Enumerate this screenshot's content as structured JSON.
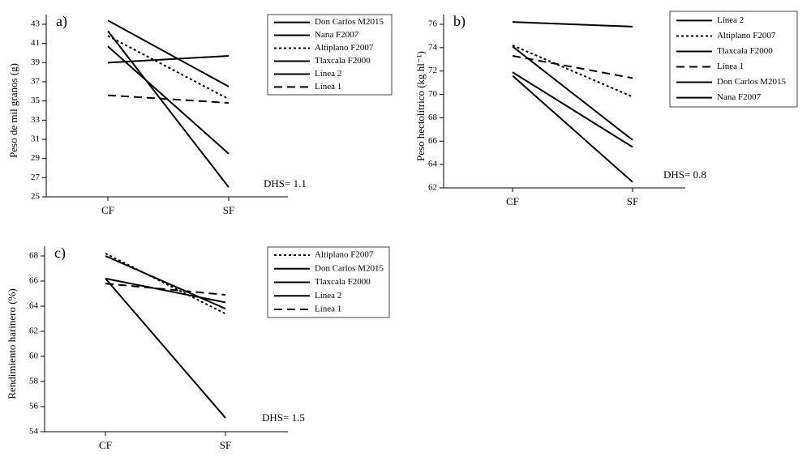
{
  "chart_data": [
    {
      "type": "line",
      "title": "a)",
      "y_label": "Peso de mil granos (g)",
      "annotation": "DHS= 1.1",
      "categories": [
        "CF",
        "SF"
      ],
      "ylim": [
        25,
        43
      ],
      "yticks": [
        25,
        27,
        29,
        31,
        33,
        35,
        37,
        39,
        41,
        43
      ],
      "grid": false,
      "series": [
        {
          "name": "Don Carlos M2015",
          "color": "#000000",
          "style": "solid",
          "values": [
            43.4,
            36.5
          ]
        },
        {
          "name": "Nana F2007",
          "color": "#000000",
          "style": "solid",
          "values": [
            39.0,
            39.7
          ]
        },
        {
          "name": "Altiplano F2007",
          "color": "#000000",
          "style": "dotted",
          "values": [
            41.8,
            35.2
          ]
        },
        {
          "name": "Tlaxcala F2000",
          "color": "#000000",
          "style": "solid",
          "values": [
            40.7,
            29.5
          ]
        },
        {
          "name": "Línea 2",
          "color": "#000000",
          "style": "solid",
          "values": [
            42.3,
            26.0
          ]
        },
        {
          "name": "Línea 1",
          "color": "#000000",
          "style": "dashed",
          "values": [
            35.6,
            34.8
          ]
        }
      ]
    },
    {
      "type": "line",
      "title": "b)",
      "y_label": "Peso hectolítrico (kg hl⁻¹)",
      "annotation": "DHS= 0.8",
      "categories": [
        "CF",
        "SF"
      ],
      "ylim": [
        62,
        76
      ],
      "yticks": [
        62,
        64,
        66,
        68,
        70,
        72,
        74,
        76
      ],
      "grid": false,
      "series": [
        {
          "name": "Línea 2",
          "color": "#000000",
          "style": "solid",
          "values": [
            76.2,
            75.8
          ]
        },
        {
          "name": "Altiplano F2007",
          "color": "#000000",
          "style": "dotted",
          "values": [
            74.2,
            69.8
          ]
        },
        {
          "name": "Tlaxcala F2000",
          "color": "#000000",
          "style": "solid",
          "values": [
            74.1,
            66.1
          ]
        },
        {
          "name": "Línea 1",
          "color": "#000000",
          "style": "dashed",
          "values": [
            73.3,
            71.4
          ]
        },
        {
          "name": "Don Carlos M2015",
          "color": "#000000",
          "style": "solid",
          "values": [
            71.9,
            65.5
          ]
        },
        {
          "name": "Nana F2007",
          "color": "#000000",
          "style": "solid",
          "values": [
            71.6,
            62.5
          ]
        }
      ]
    },
    {
      "type": "line",
      "title": "c)",
      "y_label": "Rendimiento harinero (%)",
      "annotation": "DHS= 1.5",
      "categories": [
        "CF",
        "SF"
      ],
      "ylim": [
        54,
        68
      ],
      "yticks": [
        54,
        56,
        58,
        60,
        62,
        64,
        66,
        68
      ],
      "grid": false,
      "series": [
        {
          "name": "Altiplano F2007",
          "color": "#000000",
          "style": "dotted",
          "values": [
            68.2,
            63.4
          ]
        },
        {
          "name": "Don Carlos M2015",
          "color": "#000000",
          "style": "solid",
          "values": [
            68.0,
            63.8
          ]
        },
        {
          "name": "Tlaxcala F2000",
          "color": "#000000",
          "style": "solid",
          "values": [
            66.2,
            64.3
          ]
        },
        {
          "name": "Línea 2",
          "color": "#000000",
          "style": "solid",
          "values": [
            66.2,
            55.1
          ]
        },
        {
          "name": "Línea 1",
          "color": "#000000",
          "style": "dashed",
          "values": [
            65.8,
            64.9
          ]
        }
      ]
    }
  ]
}
